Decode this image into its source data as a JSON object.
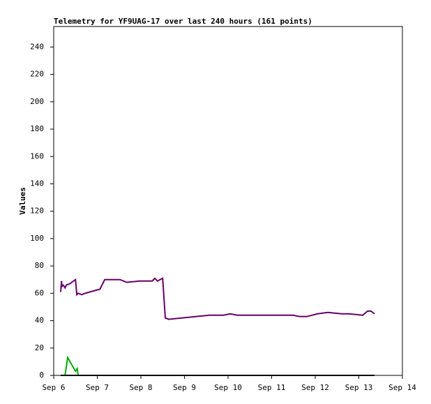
{
  "chart_data": {
    "type": "line",
    "title": "Telemetry for YF9UAG-17 over last 240 hours (161 points)",
    "ylabel": "Values",
    "xlim": [
      6,
      14
    ],
    "xticks": [
      {
        "value": 6,
        "label": "Sep 6"
      },
      {
        "value": 7,
        "label": "Sep 7"
      },
      {
        "value": 8,
        "label": "Sep 8"
      },
      {
        "value": 9,
        "label": "Sep 9"
      },
      {
        "value": 10,
        "label": "Sep 10"
      },
      {
        "value": 11,
        "label": "Sep 11"
      },
      {
        "value": 12,
        "label": "Sep 12"
      },
      {
        "value": 13,
        "label": "Sep 13"
      },
      {
        "value": 14,
        "label": "Sep 14"
      }
    ],
    "ylim": [
      0,
      255
    ],
    "yticks": [
      0,
      20,
      40,
      60,
      80,
      100,
      120,
      140,
      160,
      180,
      200,
      220,
      240
    ],
    "grid": false,
    "series": [
      {
        "color": "#660066",
        "x": [
          6.16,
          6.18,
          6.19,
          6.22,
          6.26,
          6.29,
          6.37,
          6.5,
          6.53,
          6.56,
          6.64,
          6.72,
          7.06,
          7.17,
          7.52,
          7.68,
          7.97,
          8.26,
          8.32,
          8.38,
          8.5,
          8.56,
          8.64,
          9.57,
          9.73,
          9.89,
          10.05,
          10.21,
          10.53,
          10.85,
          11.17,
          11.49,
          11.65,
          11.81,
          12.05,
          12.29,
          12.61,
          12.77,
          13.09,
          13.2,
          13.28,
          13.36
        ],
        "values": [
          61,
          69,
          65,
          66,
          64,
          66,
          67,
          70,
          59,
          60,
          59,
          60,
          63,
          70,
          70,
          68,
          69,
          69,
          71,
          69,
          71,
          42,
          41,
          44,
          44,
          44,
          45,
          44,
          44,
          44,
          44,
          44,
          43,
          43,
          45,
          46,
          45,
          45,
          44,
          47,
          47,
          45
        ]
      },
      {
        "color": "#00aa00",
        "x": [
          6.26,
          6.32,
          6.5,
          6.54,
          6.56
        ],
        "values": [
          0,
          13,
          3,
          5,
          0
        ]
      },
      {
        "color": "#000000",
        "x": [
          6.16,
          13.36
        ],
        "values": [
          0,
          0
        ]
      }
    ]
  }
}
